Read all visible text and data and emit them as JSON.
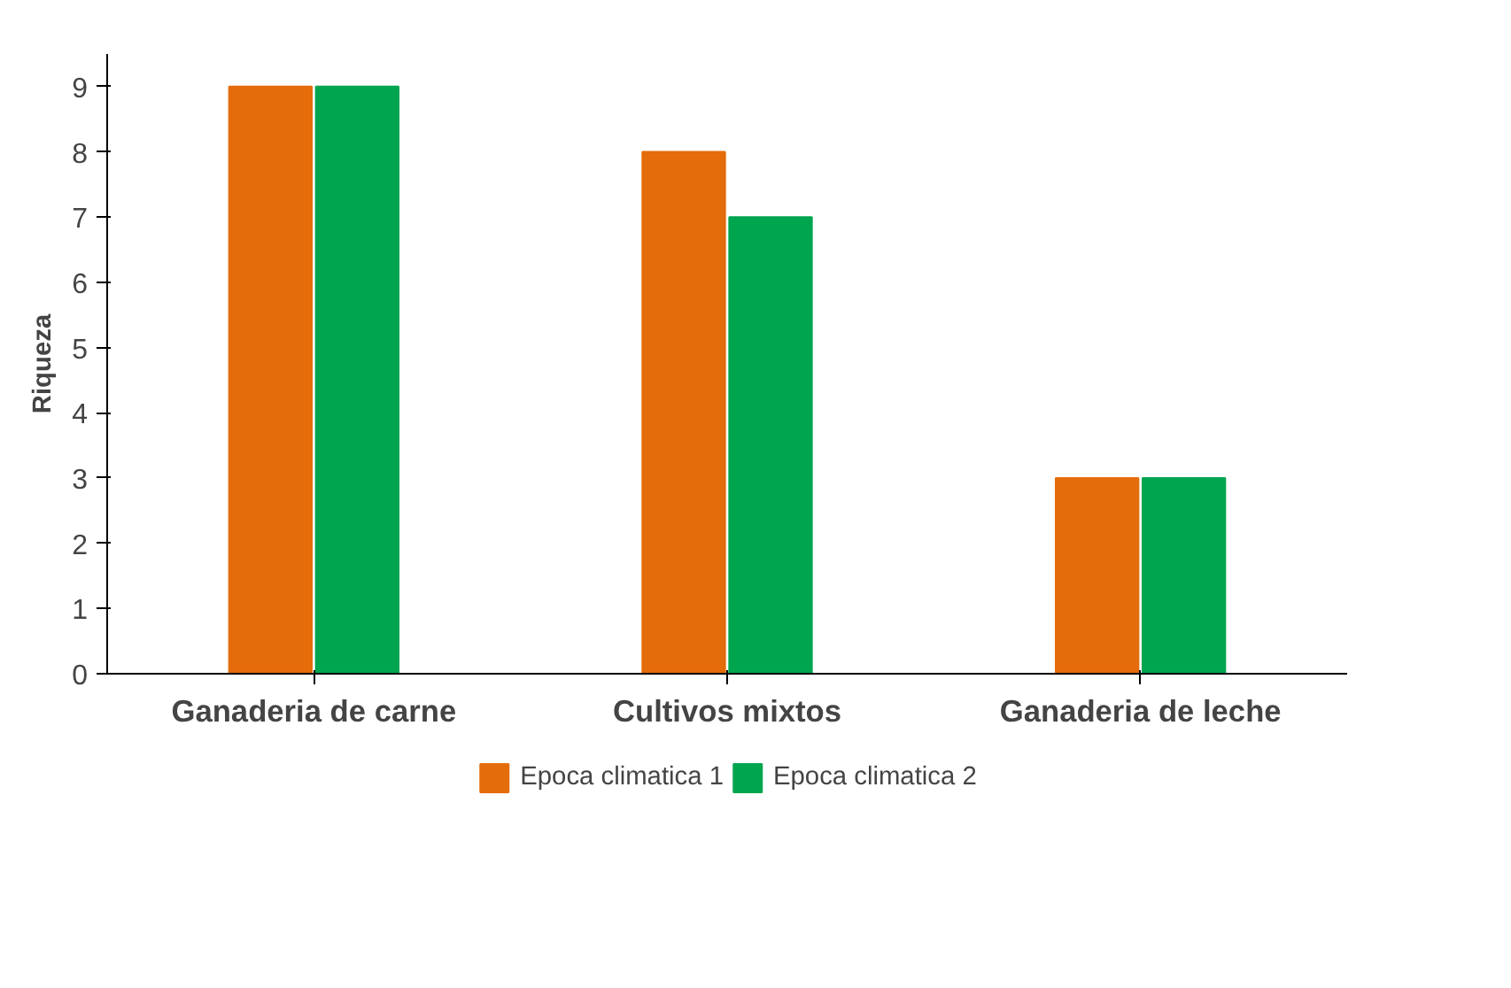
{
  "chart_data": {
    "type": "bar",
    "ylabel": "Riqueza",
    "categories": [
      "Ganaderia de carne",
      "Cultivos mixtos",
      "Ganaderia de leche"
    ],
    "series": [
      {
        "name": "Epoca climatica 1",
        "color": "#e46c0a",
        "values": [
          9,
          8,
          3
        ]
      },
      {
        "name": "Epoca climatica 2",
        "color": "#00a550",
        "values": [
          9,
          7,
          3
        ]
      }
    ],
    "ylim": [
      0,
      9.5
    ],
    "yticks": [
      0,
      1,
      2,
      3,
      4,
      5,
      6,
      7,
      8,
      9
    ],
    "grid": false,
    "legend": "bottom"
  }
}
